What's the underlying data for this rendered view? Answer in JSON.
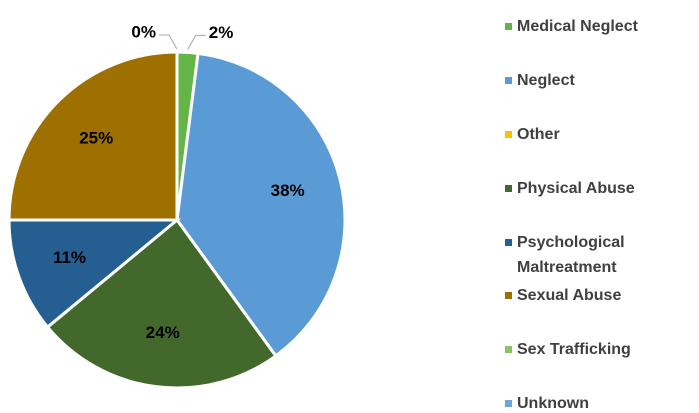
{
  "chart_data": {
    "type": "pie",
    "categories": [
      "Medical Neglect",
      "Neglect",
      "Other",
      "Physical Abuse",
      "Psychological Maltreatment",
      "Sexual Abuse",
      "Sex Trafficking",
      "Unknown"
    ],
    "values": [
      2,
      38,
      0,
      24,
      11,
      25,
      0,
      0
    ],
    "value_labels": [
      "2%",
      "38%",
      null,
      "24%",
      "11%",
      "25%",
      null,
      "0%"
    ],
    "colors": [
      "#63b545",
      "#5b9bd5",
      "#ffc000",
      "#43682b",
      "#255e91",
      "#9e7000",
      "#8cc168",
      "#6ea6dc"
    ],
    "legend": "right"
  }
}
